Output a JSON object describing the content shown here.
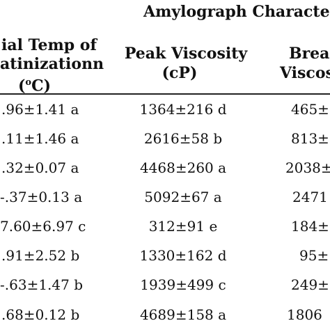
{
  "table": {
    "group_header": "Amylograph Character",
    "columns": [
      {
        "line1": "ial Temp of",
        "line2": "atinizationn",
        "line3_pre": "(",
        "line3_sup": "o",
        "line3_post": "C)"
      },
      {
        "line1": "Peak Viscosity",
        "line2": "(cP)"
      },
      {
        "line1": "Brea",
        "line2": "Viscos"
      }
    ],
    "rows": [
      [
        ".96±1.41 a",
        "1364±216 d",
        "465±"
      ],
      [
        ".11±1.46 a",
        "2616±58 b",
        "813±"
      ],
      [
        ".32±0.07 a",
        "4468±260 a",
        "2038±"
      ],
      [
        "-.37±0.13 a",
        "5092±67 a",
        "2471"
      ],
      [
        "7.60±6.97 c",
        "312±91 e",
        "184±"
      ],
      [
        ".91±2.52 b",
        "1330±162 d",
        "95±"
      ],
      [
        "-.63±1.47 b",
        "1939±499 c",
        "249±"
      ],
      [
        ".68±0.12 b",
        "4689±158 a",
        "1806"
      ]
    ]
  }
}
